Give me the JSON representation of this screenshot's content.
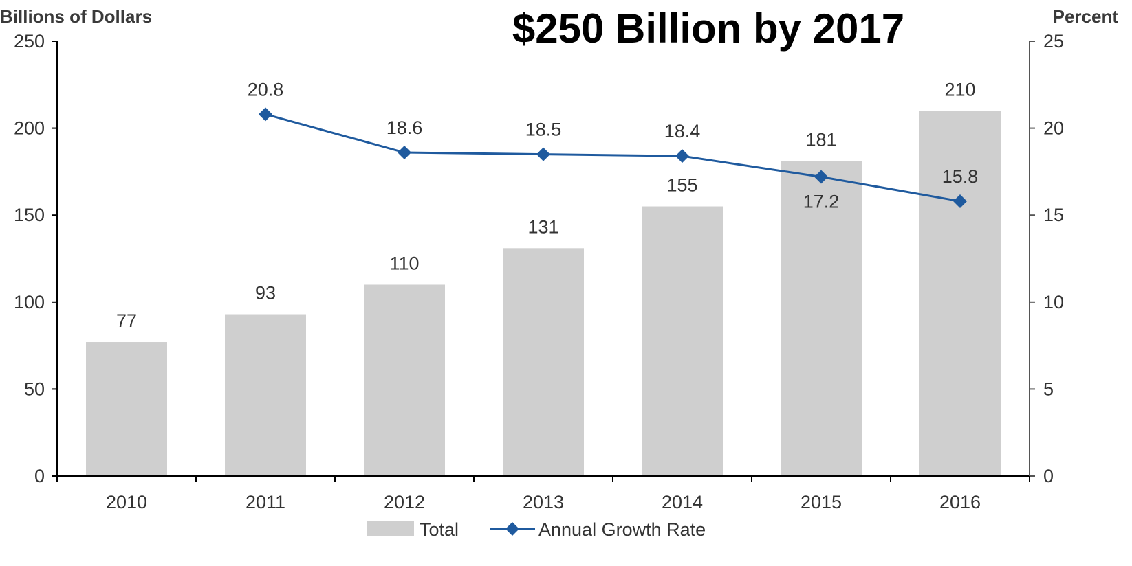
{
  "chart_data": {
    "type": "bar+line",
    "title": "$250 Billion by 2017",
    "left_axis_title": "Billions of Dollars",
    "right_axis_title": "Percent",
    "categories": [
      "2010",
      "2011",
      "2012",
      "2013",
      "2014",
      "2015",
      "2016"
    ],
    "y_left_lim": [
      0,
      250
    ],
    "y_left_ticks": [
      "0",
      "50",
      "100",
      "150",
      "200",
      "250"
    ],
    "y_right_lim": [
      0,
      25
    ],
    "y_right_ticks": [
      "0",
      "5",
      "10",
      "15",
      "20",
      "25"
    ],
    "series": [
      {
        "name": "Total",
        "type": "bar",
        "axis": "left",
        "color": "#cfcfcf",
        "values": [
          77,
          93,
          110,
          131,
          155,
          181,
          210
        ],
        "labels": [
          "77",
          "93",
          "110",
          "131",
          "155",
          "181",
          "210"
        ]
      },
      {
        "name": "Annual Growth Rate",
        "type": "line",
        "axis": "right",
        "color": "#1f5a9e",
        "marker": "diamond",
        "values": [
          null,
          20.8,
          18.6,
          18.5,
          18.4,
          17.2,
          15.8
        ],
        "labels": [
          "",
          "20.8",
          "18.6",
          "18.5",
          "18.4",
          "17.2",
          "15.8"
        ]
      }
    ],
    "legend": {
      "position": "bottom",
      "items": [
        "Total",
        "Annual Growth Rate"
      ]
    },
    "grid": false
  }
}
